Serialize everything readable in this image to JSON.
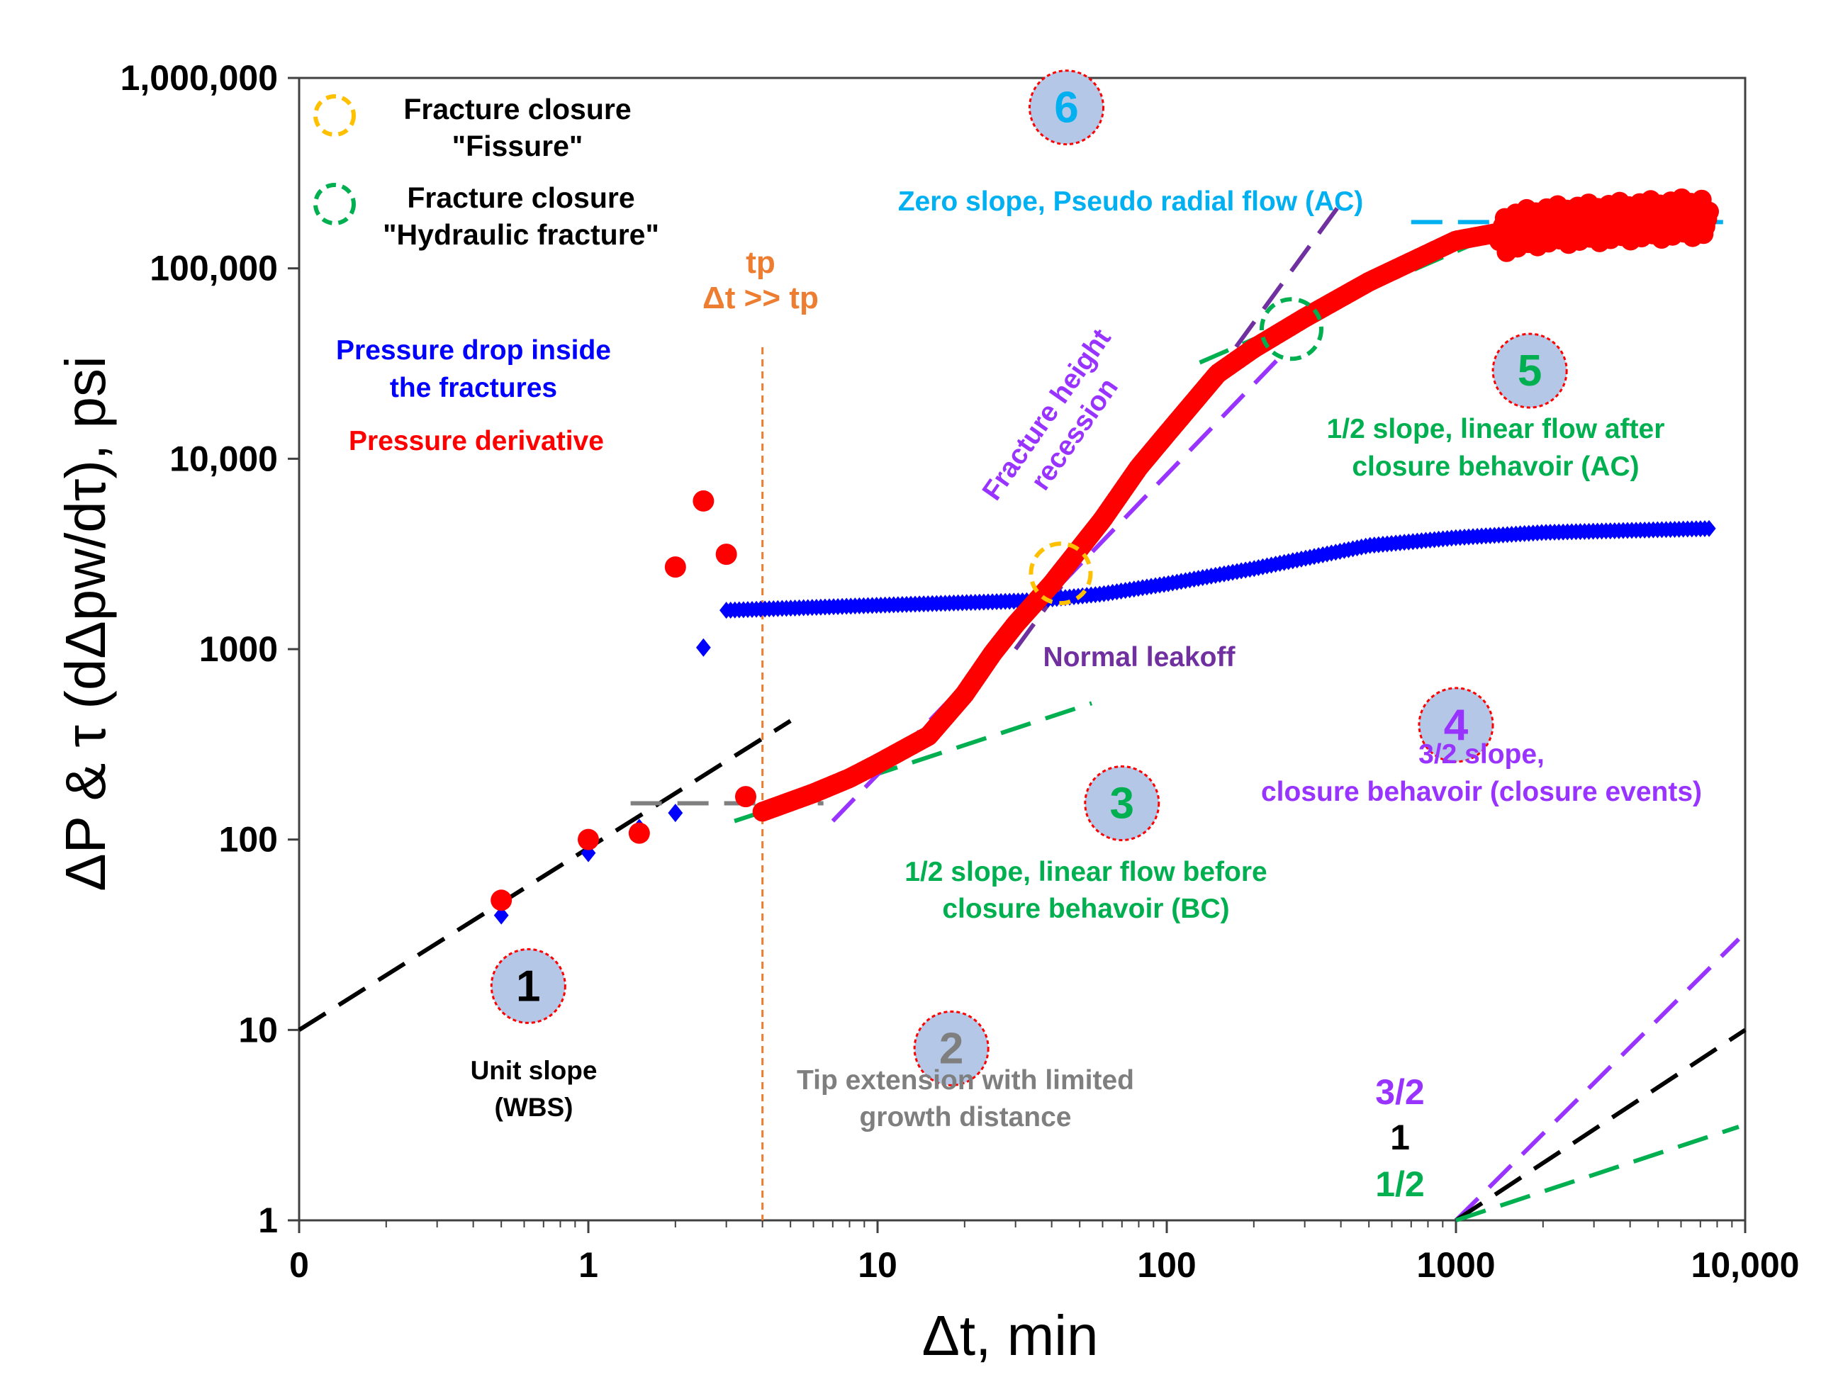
{
  "chart_data": {
    "type": "scatter",
    "title": "",
    "xlabel": "Δt, min",
    "ylabel": "ΔP & τ (dΔpw/dτ), psi",
    "xscale": "log",
    "yscale": "log",
    "xlim": [
      0.1,
      10000
    ],
    "ylim": [
      1,
      1000000
    ],
    "xticks": [
      {
        "v": 0.1,
        "label": "0"
      },
      {
        "v": 1,
        "label": "1"
      },
      {
        "v": 10,
        "label": "10"
      },
      {
        "v": 100,
        "label": "100"
      },
      {
        "v": 1000,
        "label": "1000"
      },
      {
        "v": 10000,
        "label": "10,000"
      }
    ],
    "yticks": [
      {
        "v": 1,
        "label": "1"
      },
      {
        "v": 10,
        "label": "10"
      },
      {
        "v": 100,
        "label": "100"
      },
      {
        "v": 1000,
        "label": "1000"
      },
      {
        "v": 10000,
        "label": "10,000"
      },
      {
        "v": 100000,
        "label": "100,000"
      },
      {
        "v": 1000000,
        "label": "1,000,000"
      }
    ],
    "grid": true,
    "colors": {
      "pressure_drop": "#0000ff",
      "derivative": "#ff0000",
      "unit_slope": "#000000",
      "tip_extension": "#7f7f7f",
      "half_slope": "#00b050",
      "three_half_slope": "#9933ff",
      "normal_leakoff": "#7030a0",
      "zero_slope": "#00b0f0",
      "tp": "#ed7d31",
      "fissure_marker": "#ffc000",
      "hydraulic_marker": "#00b050",
      "badge_fill": "#b4c7e7",
      "badge_border": "#ff0000"
    },
    "series": [
      {
        "name": "Pressure drop inside the fractures",
        "marker": "diamond",
        "early_points": [
          [
            0.5,
            40
          ],
          [
            1,
            85
          ],
          [
            1.5,
            115
          ],
          [
            2,
            138
          ],
          [
            2.5,
            1020
          ]
        ],
        "curve": [
          [
            3,
            1600
          ],
          [
            10,
            1700
          ],
          [
            35,
            1800
          ],
          [
            60,
            1950
          ],
          [
            100,
            2200
          ],
          [
            200,
            2650
          ],
          [
            500,
            3500
          ],
          [
            1000,
            3850
          ],
          [
            2000,
            4100
          ],
          [
            7500,
            4300
          ]
        ]
      },
      {
        "name": "Pressure derivative",
        "marker": "circle",
        "early_points": [
          [
            0.5,
            48
          ],
          [
            1,
            100
          ],
          [
            1.5,
            108
          ],
          [
            2,
            2700
          ],
          [
            2.5,
            6000
          ],
          [
            3,
            3150
          ],
          [
            3.5,
            168
          ]
        ],
        "curve": [
          [
            4,
            140
          ],
          [
            6,
            175
          ],
          [
            8,
            210
          ],
          [
            10,
            250
          ],
          [
            15,
            350
          ],
          [
            20,
            580
          ],
          [
            25,
            950
          ],
          [
            30,
            1350
          ],
          [
            40,
            2200
          ],
          [
            60,
            4800
          ],
          [
            80,
            9000
          ],
          [
            100,
            13500
          ],
          [
            150,
            28000
          ],
          [
            200,
            38000
          ],
          [
            300,
            55000
          ],
          [
            500,
            85000
          ],
          [
            1000,
            140000
          ],
          [
            2000,
            170000
          ],
          [
            7500,
            190000
          ]
        ]
      }
    ],
    "reference_lines": [
      {
        "name": "unit-slope",
        "color": "unit_slope",
        "points": [
          [
            0.1,
            10
          ],
          [
            5,
            420
          ]
        ]
      },
      {
        "name": "tip-extension",
        "color": "tip_extension",
        "points": [
          [
            1.4,
            155
          ],
          [
            6.5,
            155
          ]
        ]
      },
      {
        "name": "half-slope-bc",
        "color": "half_slope",
        "points": [
          [
            3.2,
            125
          ],
          [
            55,
            520
          ]
        ]
      },
      {
        "name": "three-half-slope",
        "color": "three_half_slope",
        "points": [
          [
            7,
            125
          ],
          [
            250,
            35000
          ]
        ]
      },
      {
        "name": "normal-leakoff",
        "color": "normal_leakoff",
        "points": [
          [
            30,
            1000
          ],
          [
            400,
            220000
          ]
        ]
      },
      {
        "name": "half-slope-ac",
        "color": "half_slope",
        "points": [
          [
            130,
            32000
          ],
          [
            2600,
            230000
          ]
        ]
      },
      {
        "name": "zero-slope",
        "color": "zero_slope",
        "points": [
          [
            700,
            175000
          ],
          [
            9000,
            175000
          ]
        ]
      },
      {
        "name": "ref-3-2",
        "color": "three_half_slope",
        "points": [
          [
            1000,
            1
          ],
          [
            9500,
            30
          ]
        ]
      },
      {
        "name": "ref-1",
        "color": "unit_slope",
        "points": [
          [
            1000,
            1
          ],
          [
            10000,
            10
          ]
        ]
      },
      {
        "name": "ref-1-2",
        "color": "half_slope",
        "points": [
          [
            1000,
            1
          ],
          [
            9500,
            3.1
          ]
        ]
      }
    ],
    "tp_line_x": 4,
    "fissure_closure_at": [
      43,
      2500
    ],
    "hydraulic_closure_at": [
      270,
      48000
    ],
    "legend": {
      "fissure": [
        "Fracture closure",
        "\"Fissure\""
      ],
      "hydraulic": [
        "Fracture closure",
        "\"Hydraulic fracture\""
      ]
    },
    "annotations": {
      "pressure_drop": [
        "Pressure drop inside",
        "the fractures"
      ],
      "derivative": "Pressure derivative",
      "tp": "tp",
      "tp_condition": "Δt >> tp",
      "zero_slope": "Zero slope, Pseudo radial flow (AC)",
      "height_recession": [
        "Fracture height",
        "recession"
      ],
      "normal_leakoff": "Normal leakoff",
      "unit_slope": [
        "Unit slope",
        "(WBS)"
      ],
      "tip_extension": [
        "Tip extension with limited",
        "growth distance"
      ],
      "half_slope_bc": [
        "1/2 slope, linear flow before",
        "closure behavoir (BC)"
      ],
      "three_half": [
        "3/2 slope,",
        "closure behavoir (closure events)"
      ],
      "half_slope_ac": [
        "1/2 slope, linear flow after",
        "closure behavoir (AC)"
      ],
      "slope_3_2": "3/2",
      "slope_1": "1",
      "slope_1_2": "1/2"
    },
    "badges": [
      {
        "label": "1",
        "at": [
          0.62,
          17
        ],
        "color": "#000000"
      },
      {
        "label": "2",
        "at": [
          18,
          8
        ],
        "color": "#7f7f7f"
      },
      {
        "label": "3",
        "at": [
          70,
          155
        ],
        "color": "#00b050"
      },
      {
        "label": "4",
        "at": [
          1000,
          400
        ],
        "color": "#9933ff"
      },
      {
        "label": "5",
        "at": [
          1800,
          29000
        ],
        "color": "#00b050"
      },
      {
        "label": "6",
        "at": [
          45,
          700000
        ],
        "color": "#00b0f0"
      }
    ]
  }
}
